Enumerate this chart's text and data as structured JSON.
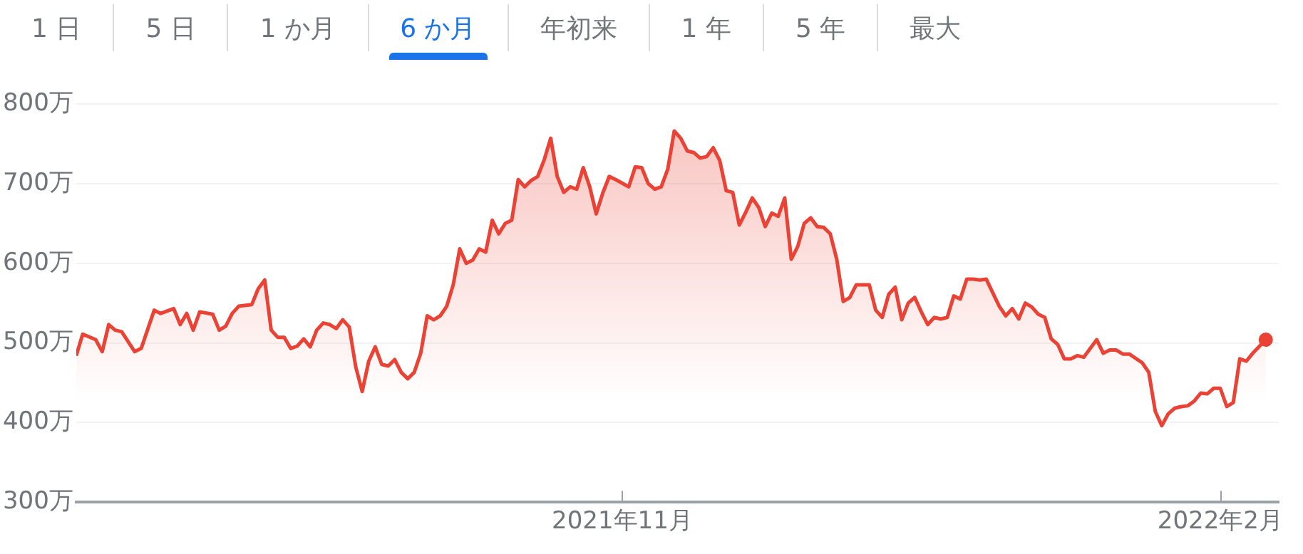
{
  "chart_data": {
    "type": "area",
    "annotations": [
      "1 日",
      "5 日",
      "1 か月",
      "6 か月",
      "年初来",
      "1 年",
      "5 年",
      "最大"
    ],
    "x": [
      "2021-08-09",
      "2021-08-10",
      "2021-08-12",
      "2021-08-13",
      "2021-08-14",
      "2021-08-15",
      "2021-08-16",
      "2021-08-18",
      "2021-08-19",
      "2021-08-21",
      "2021-08-22",
      "2021-08-24",
      "2021-08-25",
      "2021-08-26",
      "2021-08-27",
      "2021-08-28",
      "2021-08-30",
      "2021-08-31",
      "2021-09-01",
      "2021-09-02",
      "2021-09-03",
      "2021-09-05",
      "2021-09-06",
      "2021-09-07",
      "2021-09-08",
      "2021-09-09",
      "2021-09-10",
      "2021-09-11",
      "2021-09-12",
      "2021-09-13",
      "2021-09-14",
      "2021-09-15",
      "2021-09-16",
      "2021-09-17",
      "2021-09-18",
      "2021-09-19",
      "2021-09-20",
      "2021-09-21",
      "2021-09-22",
      "2021-09-23",
      "2021-09-24",
      "2021-09-25",
      "2021-09-26",
      "2021-09-27",
      "2021-09-28",
      "2021-09-29",
      "2021-09-30",
      "2021-10-01",
      "2021-10-02",
      "2021-10-03",
      "2021-10-04",
      "2021-10-05",
      "2021-10-06",
      "2021-10-07",
      "2021-10-08",
      "2021-10-09",
      "2021-10-10",
      "2021-10-11",
      "2021-10-12",
      "2021-10-13",
      "2021-10-14",
      "2021-10-15",
      "2021-10-16",
      "2021-10-17",
      "2021-10-18",
      "2021-10-19",
      "2021-10-20",
      "2021-10-21",
      "2021-10-22",
      "2021-10-23",
      "2021-10-24",
      "2021-10-25",
      "2021-10-26",
      "2021-10-27",
      "2021-10-28",
      "2021-10-29",
      "2021-10-30",
      "2021-10-31",
      "2021-11-02",
      "2021-11-03",
      "2021-11-04",
      "2021-11-05",
      "2021-11-06",
      "2021-11-07",
      "2021-11-08",
      "2021-11-09",
      "2021-11-10",
      "2021-11-11",
      "2021-11-12",
      "2021-11-13",
      "2021-11-14",
      "2021-11-15",
      "2021-11-16",
      "2021-11-17",
      "2021-11-18",
      "2021-11-19",
      "2021-11-20",
      "2021-11-21",
      "2021-11-22",
      "2021-11-23",
      "2021-11-24",
      "2021-11-25",
      "2021-11-26",
      "2021-11-27",
      "2021-11-28",
      "2021-11-29",
      "2021-11-30",
      "2021-12-01",
      "2021-12-02",
      "2021-12-03",
      "2021-12-04",
      "2021-12-05",
      "2021-12-06",
      "2021-12-07",
      "2021-12-09",
      "2021-12-10",
      "2021-12-11",
      "2021-12-12",
      "2021-12-13",
      "2021-12-14",
      "2021-12-15",
      "2021-12-16",
      "2021-12-17",
      "2021-12-18",
      "2021-12-19",
      "2021-12-20",
      "2021-12-21",
      "2021-12-22",
      "2021-12-23",
      "2021-12-24",
      "2021-12-25",
      "2021-12-26",
      "2021-12-27",
      "2021-12-29",
      "2021-12-30",
      "2021-12-31",
      "2022-01-01",
      "2022-01-02",
      "2022-01-03",
      "2022-01-04",
      "2022-01-05",
      "2022-01-06",
      "2022-01-07",
      "2022-01-08",
      "2022-01-09",
      "2022-01-10",
      "2022-01-11",
      "2022-01-12",
      "2022-01-13",
      "2022-01-14",
      "2022-01-15",
      "2022-01-16",
      "2022-01-17",
      "2022-01-18",
      "2022-01-20",
      "2022-01-21",
      "2022-01-22",
      "2022-01-23",
      "2022-01-24",
      "2022-01-25",
      "2022-01-26",
      "2022-01-27",
      "2022-01-28",
      "2022-01-29",
      "2022-01-30",
      "2022-01-31",
      "2022-02-01",
      "2022-02-02",
      "2022-02-03",
      "2022-02-04",
      "2022-02-05",
      "2022-02-06",
      "2022-02-08"
    ],
    "series": [
      {
        "color": "#ea4335",
        "values": [
          484,
          511,
          504,
          489,
          523,
          516,
          514,
          489,
          493,
          541,
          537,
          543,
          523,
          537,
          516,
          539,
          536,
          516,
          521,
          537,
          546,
          548,
          568,
          579,
          516,
          507,
          507,
          493,
          496,
          505,
          495,
          516,
          525,
          523,
          518,
          529,
          520,
          470,
          439,
          477,
          495,
          473,
          471,
          479,
          463,
          455,
          463,
          487,
          534,
          529,
          534,
          546,
          573,
          618,
          600,
          604,
          618,
          614,
          654,
          637,
          650,
          654,
          705,
          696,
          704,
          709,
          730,
          757,
          709,
          689,
          696,
          693,
          720,
          696,
          662,
          688,
          709,
          705,
          696,
          721,
          720,
          700,
          693,
          696,
          718,
          766,
          757,
          741,
          739,
          732,
          734,
          745,
          729,
          691,
          689,
          648,
          664,
          682,
          670,
          646,
          663,
          659,
          682,
          605,
          621,
          650,
          657,
          646,
          645,
          637,
          605,
          552,
          557,
          573,
          573,
          541,
          532,
          561,
          570,
          529,
          550,
          557,
          539,
          523,
          532,
          530,
          532,
          559,
          555,
          580,
          580,
          579,
          580,
          546,
          534,
          543,
          530,
          550,
          545,
          536,
          532,
          505,
          498,
          480,
          480,
          484,
          482,
          493,
          504,
          487,
          491,
          491,
          486,
          486,
          475,
          463,
          414,
          396,
          411,
          418,
          420,
          421,
          427,
          437,
          436,
          443,
          443,
          420,
          425,
          480,
          477,
          487,
          504
        ]
      }
    ],
    "xlim": [
      "2021-08-09",
      "2022-02-10"
    ],
    "xticks": [
      {
        "value": "2021-11-01",
        "label": "2021年11月"
      },
      {
        "value": "2022-02-01",
        "label": "2022年2月"
      }
    ],
    "ylim": [
      300,
      800
    ],
    "yticks": [
      {
        "value": 300,
        "label": "300万"
      },
      {
        "value": 400,
        "label": "400万"
      },
      {
        "value": 500,
        "label": "500万"
      },
      {
        "value": 600,
        "label": "600万"
      },
      {
        "value": 700,
        "label": "700万"
      },
      {
        "value": 800,
        "label": "800万"
      }
    ],
    "grid": "y",
    "legend": false
  }
}
